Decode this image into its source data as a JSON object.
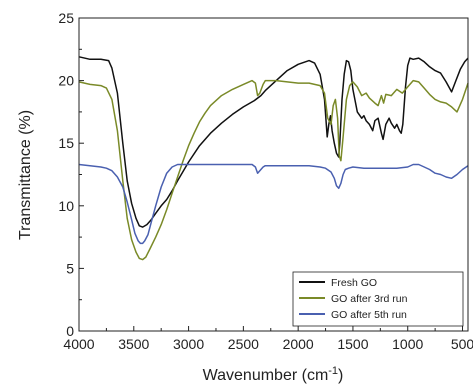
{
  "chart_data": {
    "type": "line",
    "xlabel": "Wavenumber (cm",
    "xlabel_sup": "-1",
    "xlabel_close": ")",
    "ylabel": "Transmittance (%)",
    "xlim": [
      4000,
      450
    ],
    "x_reversed": true,
    "ylim": [
      0,
      25
    ],
    "x_ticks": [
      4000,
      3500,
      3000,
      2500,
      2000,
      1500,
      1000,
      500
    ],
    "y_ticks": [
      0,
      5,
      10,
      15,
      20,
      25
    ],
    "grid": false,
    "legend_position": "bottom-right",
    "series": [
      {
        "name": "Fresh GO",
        "color": "#111111",
        "x": [
          4000,
          3900,
          3800,
          3730,
          3700,
          3650,
          3600,
          3560,
          3520,
          3480,
          3450,
          3420,
          3380,
          3340,
          3300,
          3250,
          3200,
          3150,
          3100,
          3000,
          2900,
          2800,
          2700,
          2600,
          2500,
          2400,
          2370,
          2340,
          2300,
          2200,
          2100,
          2000,
          1900,
          1850,
          1800,
          1760,
          1735,
          1720,
          1705,
          1690,
          1670,
          1650,
          1630,
          1620,
          1600,
          1580,
          1560,
          1540,
          1520,
          1500,
          1460,
          1420,
          1400,
          1380,
          1350,
          1320,
          1300,
          1270,
          1240,
          1225,
          1200,
          1170,
          1150,
          1120,
          1100,
          1075,
          1060,
          1045,
          1020,
          1000,
          980,
          950,
          900,
          850,
          800,
          750,
          700,
          650,
          600,
          560,
          520,
          480,
          450
        ],
        "y": [
          21.9,
          21.7,
          21.7,
          21.6,
          21.0,
          19.0,
          15.0,
          12.0,
          10.2,
          9.0,
          8.4,
          8.3,
          8.5,
          8.9,
          9.4,
          10.0,
          10.5,
          11.2,
          12.0,
          13.5,
          14.8,
          15.8,
          16.6,
          17.3,
          17.9,
          18.4,
          18.6,
          18.8,
          19.2,
          20.0,
          20.8,
          21.3,
          21.6,
          21.4,
          20.5,
          18.5,
          15.5,
          16.5,
          17.2,
          16.0,
          15.0,
          14.2,
          13.9,
          15.0,
          18.5,
          20.5,
          21.6,
          21.5,
          20.8,
          19.3,
          17.5,
          17.0,
          17.2,
          16.8,
          16.5,
          16.0,
          16.8,
          17.0,
          15.8,
          15.3,
          16.5,
          17.0,
          16.6,
          16.2,
          16.5,
          16.0,
          15.8,
          16.5,
          19.5,
          21.2,
          21.8,
          21.7,
          21.8,
          21.5,
          21.1,
          20.8,
          20.6,
          19.9,
          19.1,
          20.0,
          20.9,
          21.5,
          21.8
        ]
      },
      {
        "name": "GO after 3rd run",
        "color": "#7a8a28",
        "x": [
          4000,
          3900,
          3800,
          3750,
          3700,
          3650,
          3600,
          3560,
          3520,
          3480,
          3450,
          3420,
          3390,
          3350,
          3300,
          3250,
          3200,
          3150,
          3100,
          3050,
          3000,
          2950,
          2900,
          2850,
          2800,
          2700,
          2600,
          2500,
          2420,
          2390,
          2370,
          2350,
          2320,
          2300,
          2200,
          2100,
          2000,
          1900,
          1800,
          1760,
          1730,
          1700,
          1680,
          1660,
          1640,
          1625,
          1610,
          1590,
          1560,
          1530,
          1500,
          1460,
          1420,
          1400,
          1380,
          1350,
          1300,
          1270,
          1240,
          1220,
          1200,
          1150,
          1100,
          1050,
          1000,
          950,
          900,
          850,
          800,
          750,
          700,
          650,
          600,
          550,
          500,
          450
        ],
        "y": [
          19.9,
          19.7,
          19.6,
          19.4,
          18.5,
          16.0,
          12.0,
          9.0,
          7.3,
          6.3,
          5.8,
          5.7,
          5.9,
          6.6,
          7.5,
          8.5,
          9.7,
          11.0,
          12.3,
          13.6,
          14.8,
          15.8,
          16.7,
          17.4,
          18.0,
          18.8,
          19.3,
          19.7,
          20.0,
          19.8,
          18.8,
          19.0,
          19.7,
          20.0,
          20.0,
          19.9,
          19.8,
          19.8,
          19.6,
          19.0,
          17.0,
          16.5,
          18.0,
          18.5,
          17.0,
          14.0,
          13.6,
          15.5,
          18.5,
          19.6,
          19.9,
          19.5,
          18.8,
          18.9,
          19.0,
          18.6,
          18.2,
          18.0,
          18.8,
          18.2,
          18.9,
          18.8,
          19.3,
          19.0,
          19.5,
          20.0,
          19.9,
          19.4,
          18.9,
          18.5,
          18.3,
          18.2,
          17.9,
          17.5,
          18.5,
          19.8
        ]
      },
      {
        "name": "GO after 5th run",
        "color": "#4a60b0",
        "x": [
          4000,
          3900,
          3800,
          3750,
          3700,
          3650,
          3600,
          3560,
          3520,
          3490,
          3460,
          3440,
          3420,
          3400,
          3370,
          3340,
          3300,
          3250,
          3200,
          3150,
          3100,
          3050,
          3000,
          2900,
          2800,
          2700,
          2600,
          2500,
          2420,
          2390,
          2370,
          2350,
          2320,
          2300,
          2200,
          2100,
          2000,
          1900,
          1800,
          1750,
          1700,
          1670,
          1650,
          1630,
          1610,
          1590,
          1570,
          1540,
          1500,
          1400,
          1300,
          1200,
          1100,
          1000,
          950,
          900,
          850,
          800,
          750,
          700,
          650,
          600,
          550,
          500,
          450
        ],
        "y": [
          13.3,
          13.2,
          13.1,
          13.0,
          12.8,
          12.3,
          11.5,
          10.3,
          8.9,
          7.8,
          7.2,
          7.0,
          7.0,
          7.2,
          7.7,
          8.7,
          10.0,
          11.5,
          12.6,
          13.1,
          13.3,
          13.3,
          13.3,
          13.3,
          13.3,
          13.3,
          13.3,
          13.3,
          13.3,
          13.1,
          12.6,
          12.8,
          13.1,
          13.2,
          13.2,
          13.2,
          13.2,
          13.2,
          13.1,
          13.0,
          12.7,
          12.2,
          11.6,
          11.4,
          11.8,
          12.5,
          12.9,
          13.0,
          13.1,
          13.0,
          13.0,
          13.0,
          13.0,
          13.1,
          13.3,
          13.3,
          13.1,
          12.9,
          12.6,
          12.5,
          12.3,
          12.2,
          12.5,
          12.9,
          13.2
        ]
      }
    ]
  }
}
